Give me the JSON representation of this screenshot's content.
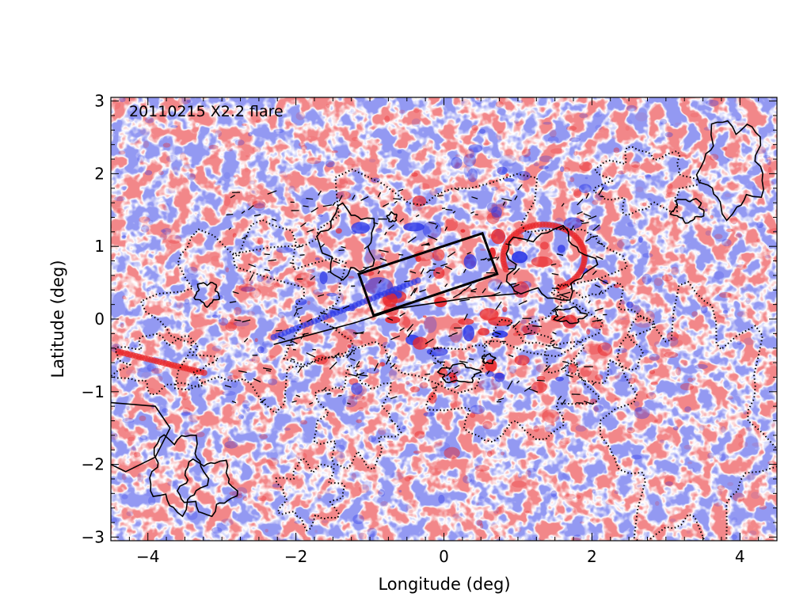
{
  "chart_data": {
    "type": "heatmap",
    "title": "20110215  X2.2 flare",
    "xlabel": "Longitude (deg)",
    "ylabel": "Latitude (deg)",
    "xlim": [
      -4.5,
      4.5
    ],
    "ylim": [
      -3.05,
      3.05
    ],
    "xticks": [
      -4,
      -2,
      0,
      2,
      4
    ],
    "yticks": [
      -3,
      -2,
      -1,
      0,
      1,
      2,
      3
    ],
    "colormap": {
      "positive": "#e8262a",
      "negative": "#2a35e6",
      "zero": "#ffffff"
    },
    "overlays": {
      "solid_contours": "black",
      "dotted_contours": "black",
      "vector_arrows": "black",
      "box": {
        "corners": [
          [
            -1.15,
            0.62
          ],
          [
            0.52,
            1.18
          ],
          [
            0.72,
            0.62
          ],
          [
            -0.95,
            0.05
          ]
        ]
      }
    }
  }
}
